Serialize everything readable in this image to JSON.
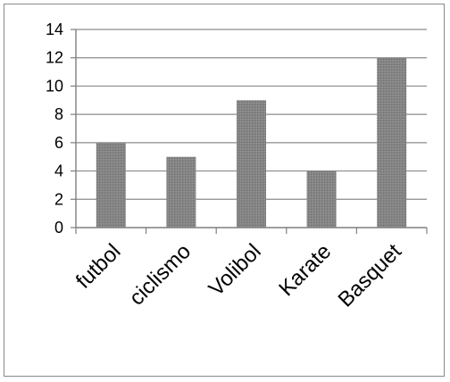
{
  "chart_data": {
    "type": "bar",
    "categories": [
      "futbol",
      "ciclismo",
      "Volibol",
      "Karate",
      "Basquet"
    ],
    "values": [
      6,
      5,
      9,
      4,
      12
    ],
    "title": "",
    "xlabel": "",
    "ylabel": "",
    "ylim": [
      0,
      14
    ],
    "yticks": [
      0,
      2,
      4,
      6,
      8,
      10,
      12,
      14
    ],
    "grid": true,
    "legend": "none",
    "bar_color": "#7f7f7f",
    "grid_color": "#8c8c8c",
    "axis_color": "#7f7f7f"
  }
}
